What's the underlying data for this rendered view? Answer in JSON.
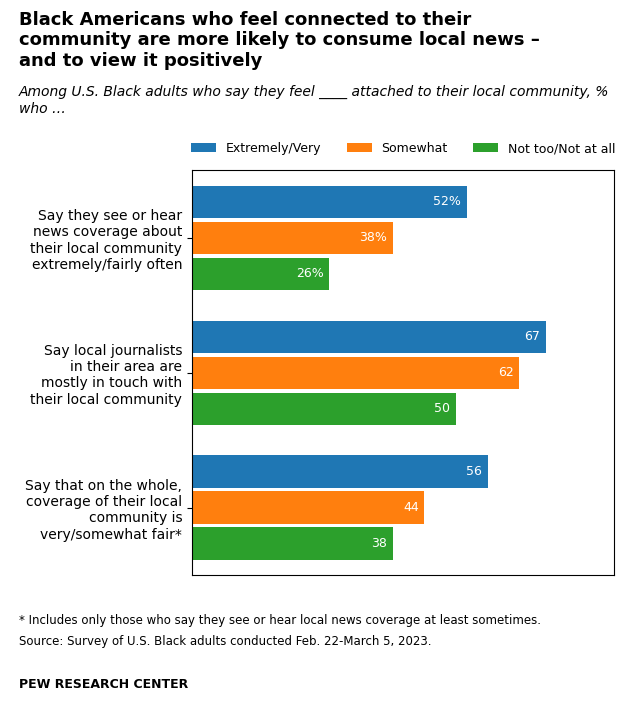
{
  "chart_data": {
    "type": "bar",
    "orientation": "horizontal",
    "title": "Black Americans who feel connected to their\ncommunity are more likely to consume local news –\nand to view it positively",
    "subtitle": "Among U.S. Black adults who say they feel ____ attached to their local community, % who …",
    "categories": [
      "Say they see or hear\nnews coverage about\ntheir local community\nextremely/fairly often",
      "Say local journalists\nin their area are\nmostly in touch with\ntheir local community",
      "Say that on the whole,\ncoverage of their local\ncommunity is\nvery/somewhat fair*"
    ],
    "series": [
      {
        "name": "Extremely/Very",
        "values": [
          52,
          67,
          56
        ],
        "value_labels": [
          "52%",
          "67",
          "56"
        ]
      },
      {
        "name": "Somewhat",
        "values": [
          38,
          62,
          44
        ],
        "value_labels": [
          "38%",
          "62",
          "44"
        ]
      },
      {
        "name": "Not too/Not at all",
        "values": [
          26,
          50,
          38
        ],
        "value_labels": [
          "26%",
          "50",
          "38"
        ]
      }
    ],
    "xlim": [
      0,
      80
    ],
    "data_labels": true,
    "tick_labels": "y",
    "legend": "upper center",
    "annotations": [
      "* Includes only those who say they see or hear local news coverage at least sometimes.",
      "Source: Survey of U.S. Black adults conducted Feb. 22-March 5, 2023.",
      "PEW RESEARCH CENTER"
    ]
  }
}
